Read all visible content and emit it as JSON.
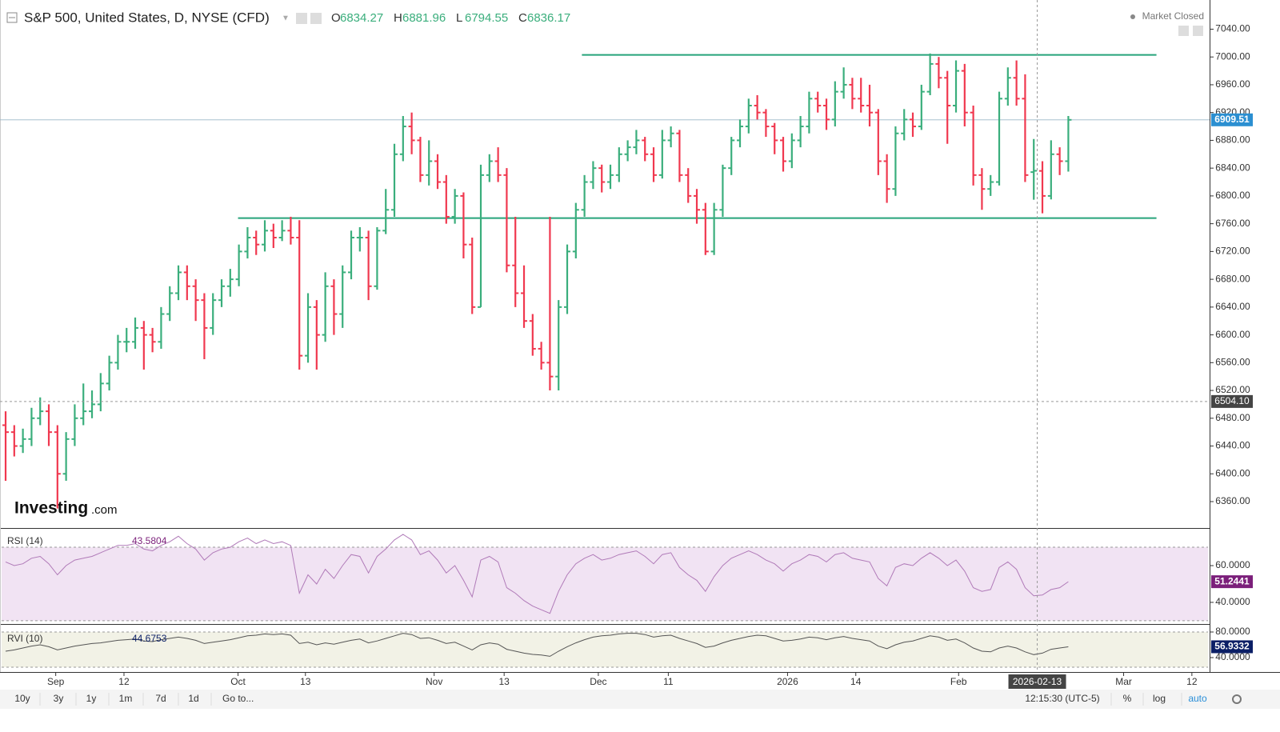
{
  "header": {
    "title": "S&P 500, United States, D, NYSE (CFD)",
    "ohlc_labels": [
      "O",
      "H",
      "L",
      "C"
    ],
    "status": "Market Closed",
    "logo_main": "Investing",
    "logo_suffix": ".com"
  },
  "toolbar": {
    "ranges": [
      "10y",
      "3y",
      "1y",
      "1m",
      "7d",
      "1d"
    ],
    "goto": "Go to...",
    "clock": "12:15:30 (UTC-5)",
    "options": [
      "%",
      "log",
      "auto"
    ]
  },
  "chart_data": {
    "type": "ohlc",
    "up_color": "#3aae7c",
    "down_color": "#f0384f",
    "level_color": "#26a37a",
    "xlim": [
      -0.65,
      139.35
    ],
    "ylim": [
      6322,
      7082
    ],
    "yticks": [
      {
        "value": 6360,
        "label": "6360.00"
      },
      {
        "value": 6400,
        "label": "6400.00"
      },
      {
        "value": 6440,
        "label": "6440.00"
      },
      {
        "value": 6480,
        "label": "6480.00"
      },
      {
        "value": 6520,
        "label": "6520.00"
      },
      {
        "value": 6560,
        "label": "6560.00"
      },
      {
        "value": 6600,
        "label": "6600.00"
      },
      {
        "value": 6640,
        "label": "6640.00"
      },
      {
        "value": 6680,
        "label": "6680.00"
      },
      {
        "value": 6720,
        "label": "6720.00"
      },
      {
        "value": 6760,
        "label": "6760.00"
      },
      {
        "value": 6800,
        "label": "6800.00"
      },
      {
        "value": 6840,
        "label": "6840.00"
      },
      {
        "value": 6880,
        "label": "6880.00"
      },
      {
        "value": 6920,
        "label": "6920.00"
      },
      {
        "value": 6960,
        "label": "6960.00"
      },
      {
        "value": 7000,
        "label": "7000.00"
      },
      {
        "value": 7040,
        "label": "7040.00"
      }
    ],
    "xticks": [
      {
        "value": 5.8,
        "label": "Sep"
      },
      {
        "value": 13.7,
        "label": "12"
      },
      {
        "value": 26.9,
        "label": "Oct"
      },
      {
        "value": 34.7,
        "label": "13"
      },
      {
        "value": 49.6,
        "label": "Nov"
      },
      {
        "value": 57.7,
        "label": "13"
      },
      {
        "value": 68.6,
        "label": "Dec"
      },
      {
        "value": 76.7,
        "label": "11"
      },
      {
        "value": 90.5,
        "label": "2026"
      },
      {
        "value": 98.4,
        "label": "14"
      },
      {
        "value": 110.3,
        "label": "Feb"
      },
      {
        "value": 129.4,
        "label": "Mar"
      },
      {
        "value": 137.3,
        "label": "12"
      }
    ],
    "crosshair": {
      "index": 119.4,
      "date": "2026-02-13",
      "price": {
        "value": 6504.1,
        "label": "6504.10"
      }
    },
    "levels": [
      {
        "y": 7003,
        "from": 66.7,
        "to": 133.2
      },
      {
        "y": 6768,
        "from": 26.9,
        "to": 133.2
      }
    ],
    "bars": [
      [
        6470,
        6490,
        6390,
        6460
      ],
      [
        6460,
        6470,
        6425,
        6440
      ],
      [
        6440,
        6465,
        6430,
        6450
      ],
      [
        6450,
        6495,
        6440,
        6480
      ],
      [
        6480,
        6510,
        6470,
        6490
      ],
      [
        6490,
        6500,
        6440,
        6460
      ],
      [
        6460,
        6470,
        6350,
        6400
      ],
      [
        6400,
        6460,
        6390,
        6450
      ],
      [
        6450,
        6500,
        6440,
        6480
      ],
      [
        6480,
        6530,
        6470,
        6490
      ],
      [
        6490,
        6520,
        6480,
        6500
      ],
      [
        6500,
        6545,
        6490,
        6530
      ],
      [
        6530,
        6570,
        6520,
        6560
      ],
      [
        6560,
        6600,
        6550,
        6590
      ],
      [
        6590,
        6610,
        6575,
        6590
      ],
      [
        6590,
        6625,
        6580,
        6610
      ],
      [
        6610,
        6620,
        6550,
        6600
      ],
      [
        6600,
        6610,
        6575,
        6590
      ],
      [
        6590,
        6640,
        6580,
        6630
      ],
      [
        6630,
        6670,
        6620,
        6660
      ],
      [
        6660,
        6700,
        6650,
        6690
      ],
      [
        6690,
        6700,
        6650,
        6670
      ],
      [
        6670,
        6680,
        6620,
        6650
      ],
      [
        6650,
        6660,
        6565,
        6610
      ],
      [
        6610,
        6660,
        6600,
        6650
      ],
      [
        6650,
        6680,
        6640,
        6670
      ],
      [
        6670,
        6695,
        6655,
        6680
      ],
      [
        6680,
        6730,
        6670,
        6720
      ],
      [
        6720,
        6755,
        6710,
        6740
      ],
      [
        6740,
        6750,
        6715,
        6730
      ],
      [
        6730,
        6765,
        6720,
        6750
      ],
      [
        6750,
        6760,
        6725,
        6740
      ],
      [
        6740,
        6765,
        6735,
        6750
      ],
      [
        6750,
        6770,
        6730,
        6740
      ],
      [
        6740,
        6765,
        6550,
        6570
      ],
      [
        6570,
        6660,
        6560,
        6640
      ],
      [
        6640,
        6650,
        6550,
        6600
      ],
      [
        6600,
        6690,
        6590,
        6670
      ],
      [
        6670,
        6680,
        6600,
        6630
      ],
      [
        6630,
        6700,
        6610,
        6690
      ],
      [
        6690,
        6750,
        6680,
        6740
      ],
      [
        6740,
        6755,
        6720,
        6740
      ],
      [
        6740,
        6750,
        6650,
        6670
      ],
      [
        6670,
        6755,
        6665,
        6750
      ],
      [
        6750,
        6810,
        6745,
        6780
      ],
      [
        6780,
        6875,
        6770,
        6860
      ],
      [
        6860,
        6915,
        6850,
        6900
      ],
      [
        6900,
        6920,
        6860,
        6880
      ],
      [
        6880,
        6885,
        6820,
        6830
      ],
      [
        6830,
        6880,
        6815,
        6850
      ],
      [
        6850,
        6860,
        6810,
        6820
      ],
      [
        6820,
        6830,
        6760,
        6770
      ],
      [
        6770,
        6810,
        6760,
        6800
      ],
      [
        6800,
        6805,
        6710,
        6730
      ],
      [
        6730,
        6740,
        6630,
        6640
      ],
      [
        6640,
        6845,
        6640,
        6830
      ],
      [
        6830,
        6860,
        6820,
        6850
      ],
      [
        6850,
        6870,
        6820,
        6830
      ],
      [
        6830,
        6840,
        6690,
        6700
      ],
      [
        6700,
        6770,
        6640,
        6660
      ],
      [
        6660,
        6700,
        6610,
        6620
      ],
      [
        6620,
        6630,
        6570,
        6580
      ],
      [
        6580,
        6590,
        6550,
        6560
      ],
      [
        6560,
        6770,
        6520,
        6540
      ],
      [
        6540,
        6650,
        6520,
        6640
      ],
      [
        6640,
        6730,
        6630,
        6720
      ],
      [
        6720,
        6790,
        6710,
        6780
      ],
      [
        6780,
        6830,
        6770,
        6820
      ],
      [
        6820,
        6850,
        6810,
        6840
      ],
      [
        6840,
        6845,
        6805,
        6820
      ],
      [
        6820,
        6845,
        6810,
        6830
      ],
      [
        6830,
        6870,
        6820,
        6860
      ],
      [
        6860,
        6880,
        6850,
        6870
      ],
      [
        6870,
        6895,
        6860,
        6880
      ],
      [
        6880,
        6885,
        6850,
        6860
      ],
      [
        6860,
        6870,
        6820,
        6830
      ],
      [
        6830,
        6895,
        6825,
        6880
      ],
      [
        6880,
        6900,
        6870,
        6890
      ],
      [
        6890,
        6895,
        6820,
        6830
      ],
      [
        6830,
        6840,
        6790,
        6800
      ],
      [
        6800,
        6810,
        6760,
        6780
      ],
      [
        6780,
        6790,
        6715,
        6720
      ],
      [
        6720,
        6790,
        6715,
        6780
      ],
      [
        6780,
        6845,
        6770,
        6840
      ],
      [
        6840,
        6885,
        6830,
        6880
      ],
      [
        6880,
        6910,
        6870,
        6900
      ],
      [
        6900,
        6940,
        6890,
        6930
      ],
      [
        6930,
        6945,
        6910,
        6920
      ],
      [
        6920,
        6925,
        6885,
        6900
      ],
      [
        6900,
        6905,
        6860,
        6880
      ],
      [
        6880,
        6885,
        6835,
        6850
      ],
      [
        6850,
        6890,
        6840,
        6880
      ],
      [
        6880,
        6915,
        6870,
        6900
      ],
      [
        6900,
        6950,
        6890,
        6940
      ],
      [
        6940,
        6950,
        6920,
        6930
      ],
      [
        6930,
        6940,
        6895,
        6910
      ],
      [
        6910,
        6965,
        6900,
        6950
      ],
      [
        6950,
        6985,
        6940,
        6960
      ],
      [
        6960,
        6970,
        6925,
        6940
      ],
      [
        6940,
        6970,
        6920,
        6930
      ],
      [
        6930,
        6960,
        6900,
        6920
      ],
      [
        6920,
        6925,
        6830,
        6850
      ],
      [
        6850,
        6860,
        6790,
        6810
      ],
      [
        6810,
        6900,
        6800,
        6890
      ],
      [
        6890,
        6925,
        6880,
        6910
      ],
      [
        6910,
        6920,
        6885,
        6900
      ],
      [
        6900,
        6960,
        6895,
        6950
      ],
      [
        6950,
        7005,
        6945,
        6990
      ],
      [
        6990,
        7000,
        6955,
        6970
      ],
      [
        6970,
        6980,
        6875,
        6930
      ],
      [
        6930,
        6995,
        6920,
        6980
      ],
      [
        6980,
        6990,
        6900,
        6920
      ],
      [
        6920,
        6930,
        6815,
        6830
      ],
      [
        6830,
        6840,
        6780,
        6810
      ],
      [
        6810,
        6830,
        6800,
        6820
      ],
      [
        6820,
        6950,
        6815,
        6940
      ],
      [
        6940,
        6985,
        6930,
        6970
      ],
      [
        6970,
        6995,
        6930,
        6940
      ],
      [
        6940,
        6975,
        6820,
        6830
      ],
      [
        6834.27,
        6881.96,
        6794.55,
        6836.17
      ],
      [
        6836,
        6850,
        6775,
        6800
      ],
      [
        6800,
        6880,
        6795,
        6860
      ],
      [
        6860,
        6870,
        6830,
        6850
      ],
      [
        6850,
        6915,
        6835,
        6909.51
      ]
    ],
    "indicators": [
      {
        "name": "RSI (14)",
        "color": "#b07ab8",
        "label_color": "#7b1f7a",
        "band_color": "#f1e3f3",
        "band": [
          30,
          70
        ],
        "ylim": [
          29.1,
          79.6
        ],
        "yticks": [
          {
            "value": 40,
            "label": "40.0000"
          },
          {
            "value": 60,
            "label": "60.0000"
          }
        ],
        "values": [
          62,
          60,
          61,
          64,
          65,
          61,
          55,
          60,
          63,
          64,
          65,
          67,
          69,
          71,
          71,
          72,
          69,
          68,
          71,
          73,
          76,
          72,
          69,
          63,
          67,
          69,
          70,
          73,
          75,
          72,
          74,
          72,
          73,
          71,
          45,
          55,
          50,
          58,
          53,
          60,
          66,
          65,
          56,
          65,
          69,
          74,
          77,
          74,
          66,
          68,
          63,
          56,
          60,
          52,
          43,
          63,
          65,
          62,
          48,
          45,
          41,
          38,
          36,
          34,
          46,
          55,
          61,
          64,
          66,
          63,
          64,
          66,
          67,
          68,
          65,
          61,
          66,
          67,
          59,
          55,
          52,
          46,
          54,
          60,
          64,
          66,
          68,
          66,
          63,
          61,
          57,
          61,
          63,
          66,
          65,
          62,
          66,
          67,
          64,
          63,
          62,
          53,
          49,
          59,
          61,
          60,
          64,
          67,
          64,
          60,
          63,
          57,
          48,
          46,
          47,
          59,
          62,
          58,
          48,
          43.5804,
          44,
          47,
          48,
          51.2441
        ]
      },
      {
        "name": "RVI (10)",
        "color": "#555555",
        "label_color": "#0b1f66",
        "band_color": "#f2f2e6",
        "band": [
          25,
          80
        ],
        "ylim": [
          20,
          87.5
        ],
        "yticks": [
          {
            "value": 40,
            "label": "40.0000"
          },
          {
            "value": 80,
            "label": "80.0000"
          }
        ],
        "values": [
          50,
          52,
          55,
          58,
          60,
          57,
          52,
          55,
          58,
          60,
          62,
          63,
          65,
          67,
          68,
          69,
          66,
          65,
          68,
          70,
          72,
          70,
          67,
          62,
          64,
          66,
          68,
          71,
          74,
          75,
          77,
          76,
          77,
          75,
          62,
          64,
          60,
          63,
          61,
          64,
          67,
          69,
          63,
          66,
          70,
          74,
          78,
          76,
          70,
          71,
          67,
          62,
          64,
          58,
          52,
          60,
          63,
          61,
          53,
          50,
          47,
          45,
          44,
          42,
          50,
          57,
          63,
          68,
          72,
          74,
          75,
          77,
          78,
          78,
          76,
          72,
          74,
          75,
          70,
          66,
          62,
          56,
          58,
          63,
          67,
          70,
          73,
          75,
          74,
          70,
          66,
          67,
          69,
          72,
          71,
          68,
          71,
          73,
          70,
          68,
          66,
          58,
          54,
          60,
          64,
          66,
          70,
          74,
          72,
          67,
          69,
          63,
          55,
          50,
          49,
          55,
          58,
          55,
          49,
          44.6753,
          47,
          53,
          55,
          56.9332
        ]
      }
    ]
  }
}
